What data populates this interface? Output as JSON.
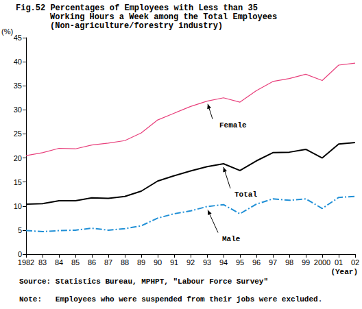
{
  "chart_data": {
    "type": "line",
    "title": "Fig.52 Percentages of Employees with Less than 35\nWorking Hours a Week among the Total Employees",
    "subtitle": "(Non-agriculture/forestry industry)",
    "y_label": "(%)",
    "x_label": "(Year)",
    "source": "Source: Statistics Bureau, MPHPT, \"Labour Force Survey\"",
    "note": "Note:   Employees who were suspended from their jobs were excluded.",
    "categories": [
      "1982",
      "83",
      "84",
      "85",
      "86",
      "87",
      "88",
      "89",
      "90",
      "91",
      "92",
      "93",
      "94",
      "95",
      "96",
      "97",
      "98",
      "99",
      "2000",
      "01",
      "02"
    ],
    "series": [
      {
        "name": "Female",
        "color": "#e8407c",
        "line_style": "solid",
        "values": [
          20.5,
          21.1,
          22.0,
          21.9,
          22.7,
          23.1,
          23.6,
          25.2,
          27.9,
          29.3,
          30.7,
          31.8,
          32.5,
          31.6,
          34.0,
          35.9,
          36.5,
          37.4,
          36.1,
          39.3,
          39.7
        ]
      },
      {
        "name": "Total",
        "color": "#000000",
        "line_style": "solid",
        "values": [
          10.4,
          10.5,
          11.1,
          11.1,
          11.7,
          11.6,
          12.0,
          13.1,
          15.2,
          16.3,
          17.3,
          18.2,
          18.8,
          17.4,
          19.4,
          21.1,
          21.2,
          21.8,
          20.0,
          22.9,
          23.2
        ]
      },
      {
        "name": "Male",
        "color": "#1f8fd6",
        "line_style": "dashdot",
        "values": [
          4.9,
          4.7,
          4.9,
          5.0,
          5.4,
          5.0,
          5.3,
          5.9,
          7.5,
          8.4,
          9.0,
          9.9,
          10.3,
          8.4,
          10.4,
          11.5,
          11.2,
          11.5,
          9.5,
          11.8,
          12.0
        ]
      }
    ],
    "ylim": [
      0,
      45
    ],
    "yticks": [
      0,
      5,
      10,
      15,
      20,
      25,
      30,
      35,
      40,
      45
    ],
    "grid": false
  }
}
